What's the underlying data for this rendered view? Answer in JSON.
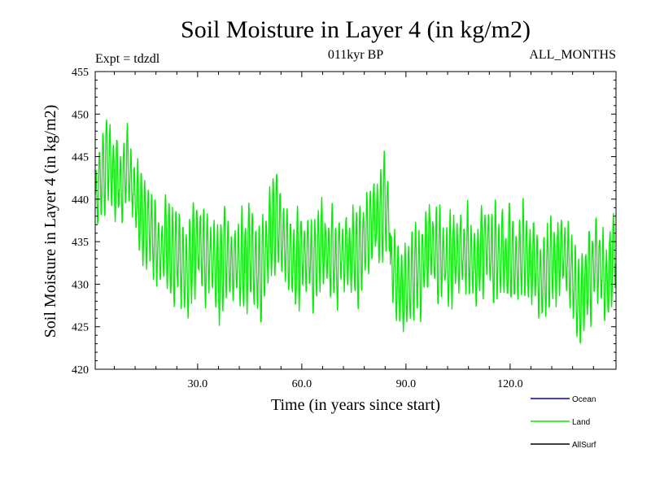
{
  "chart_data": {
    "type": "line",
    "title": "Soil Moisture in Layer 4 (in kg/m2)",
    "subtitle_left": "Expt = tdzdl",
    "subtitle_center": "011kyr BP",
    "subtitle_right": "ALL_MONTHS",
    "xlabel": "Time (in years since start)",
    "ylabel": "Soil Moisture in Layer 4 (in kg/m2)",
    "xlim": [
      0.5,
      150.5
    ],
    "ylim": [
      420,
      455
    ],
    "x_ticks": [
      30,
      60,
      90,
      120
    ],
    "x_tick_labels": [
      "30.0",
      "60.0",
      "90.0",
      "120.0"
    ],
    "y_ticks": [
      420,
      425,
      430,
      435,
      440,
      445,
      450,
      455
    ],
    "y_tick_labels": [
      "420",
      "425",
      "430",
      "435",
      "440",
      "445",
      "450",
      "455"
    ],
    "months_per_year": 12,
    "annual_amplitude": 4.5,
    "annual_means": [
      440,
      442,
      443,
      445,
      444,
      442,
      443,
      441,
      443,
      444,
      442,
      440,
      439,
      438,
      437,
      437,
      436,
      435,
      434,
      434,
      435,
      434,
      433,
      434,
      433,
      432,
      431,
      433,
      434,
      435,
      434,
      433,
      434,
      433,
      432,
      431,
      432,
      434,
      433,
      432,
      433,
      432,
      433,
      432,
      434,
      433,
      432,
      431,
      433,
      434,
      436,
      437,
      438,
      436,
      435,
      434,
      433,
      432,
      433,
      434,
      433,
      434,
      432,
      433,
      434,
      435,
      434,
      433,
      434,
      432,
      434,
      433,
      434,
      433,
      434,
      433,
      434,
      435,
      436,
      437,
      438,
      437,
      438,
      440,
      438,
      432,
      431,
      430,
      429,
      430,
      430,
      431,
      432,
      431,
      433,
      434,
      435,
      434,
      433,
      434,
      433,
      432,
      433,
      434,
      433,
      434,
      433,
      434,
      433,
      432,
      433,
      434,
      435,
      434,
      433,
      434,
      433,
      434,
      432,
      434,
      433,
      432,
      433,
      434,
      433,
      432,
      433,
      431,
      430,
      431,
      432,
      433,
      432,
      433,
      434,
      433,
      432,
      431,
      429,
      428,
      429,
      430,
      431,
      432,
      433,
      432,
      431,
      430,
      432,
      434
    ],
    "series": [
      {
        "name": "Ocean",
        "color": "#0000cc",
        "values": []
      },
      {
        "name": "Land",
        "color": "#00ee00",
        "values": "monthly values derived from annual_means"
      },
      {
        "name": "AllSurf",
        "color": "#000000",
        "values": []
      }
    ]
  }
}
